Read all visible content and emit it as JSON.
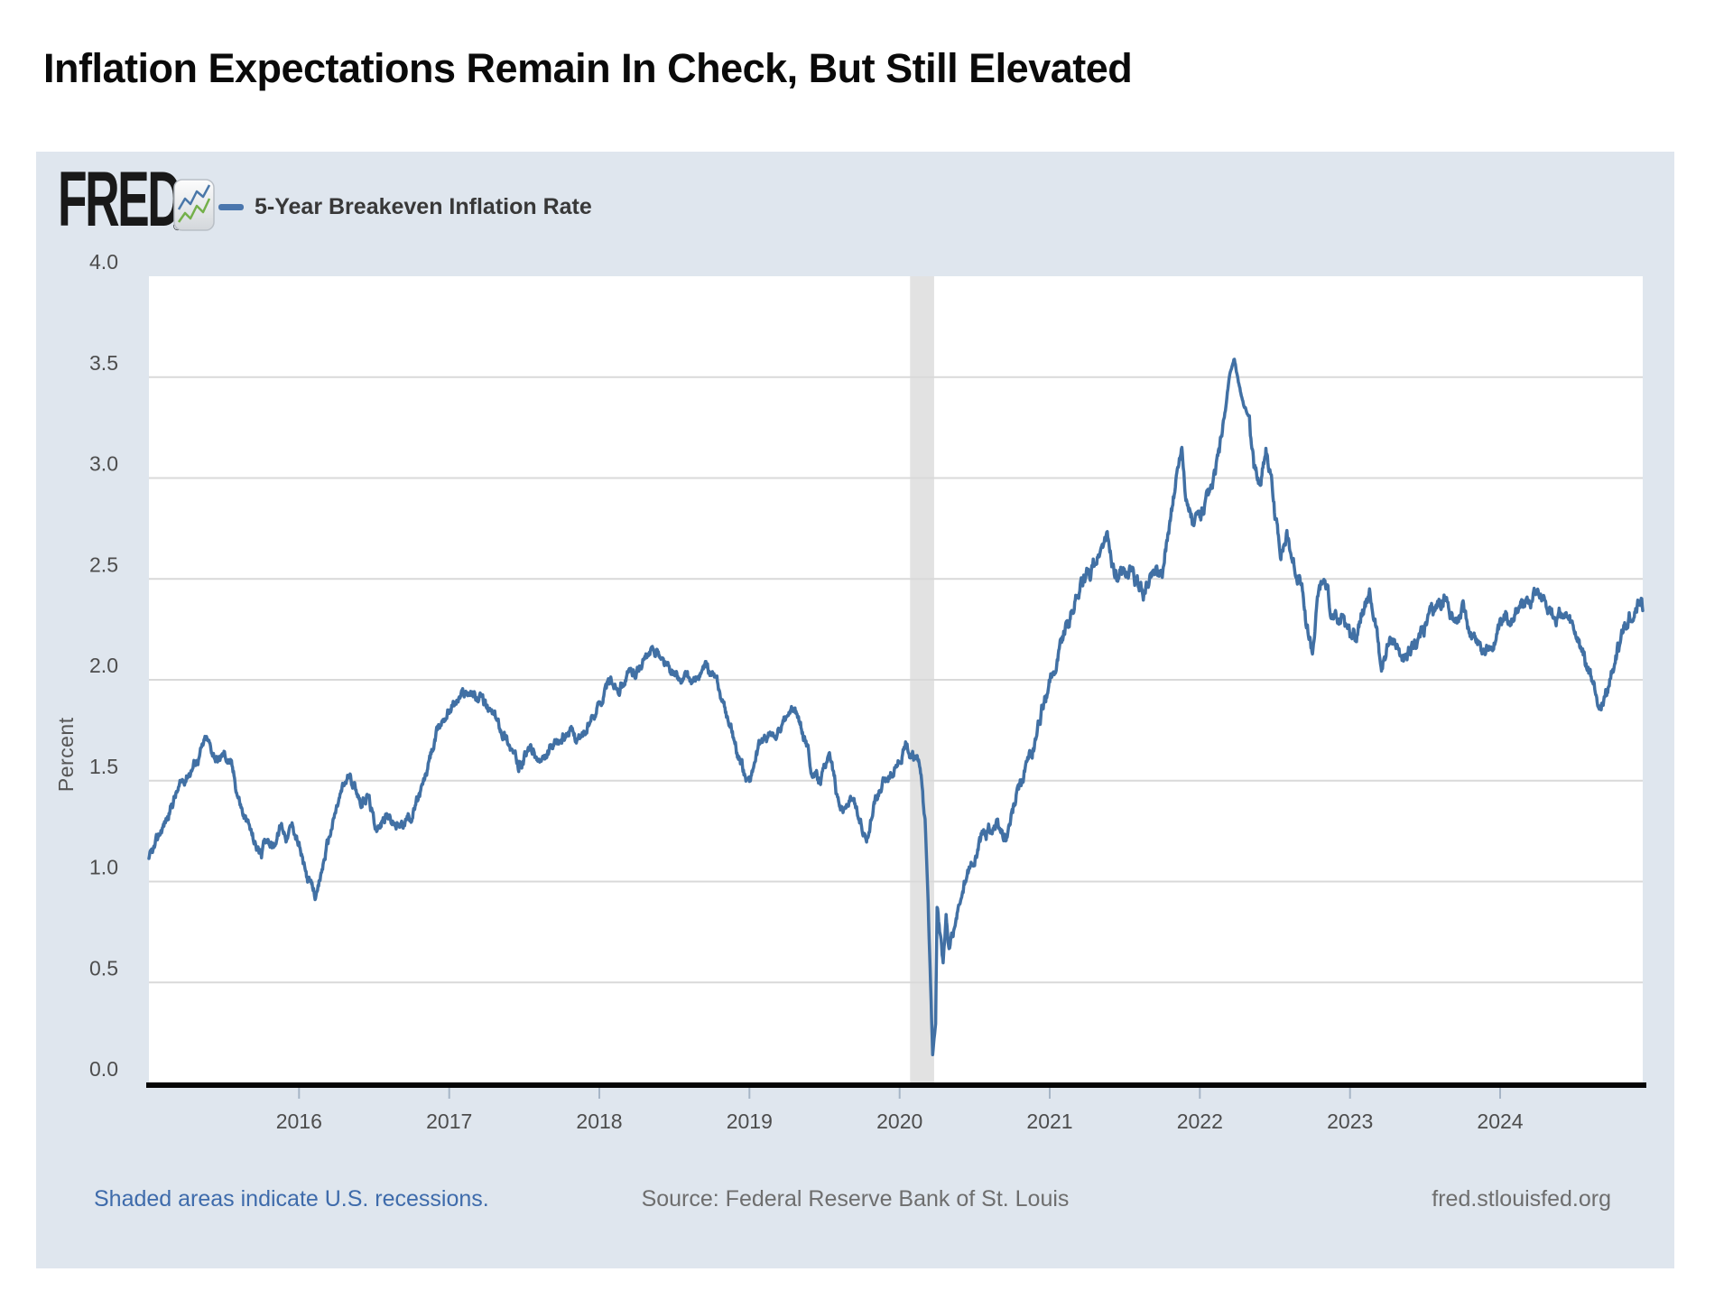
{
  "page": {
    "title": "Inflation Expectations Remain In Check, But Still Elevated"
  },
  "chart": {
    "brand": {
      "logo_text": "FRED",
      "registered_mark": "®"
    },
    "legend": {
      "swatch_color": "#4a76ad",
      "label": "5-Year Breakeven Inflation Rate"
    },
    "footer": {
      "recession_note": "Shaded areas indicate U.S. recessions.",
      "source": "Source: Federal Reserve Bank of St. Louis",
      "site": "fred.stlouisfed.org"
    }
  },
  "chart_data": {
    "type": "line",
    "title": "5-Year Breakeven Inflation Rate",
    "ylabel": "Percent",
    "xlabel": "",
    "ylim": [
      0,
      4
    ],
    "xlim": [
      2015.0,
      2024.95
    ],
    "yticks": [
      "0.0",
      "0.5",
      "1.0",
      "1.5",
      "2.0",
      "2.5",
      "3.0",
      "3.5",
      "4.0"
    ],
    "xticks": [
      2016,
      2017,
      2018,
      2019,
      2020,
      2021,
      2022,
      2023,
      2024
    ],
    "grid": true,
    "legend_position": "top-left",
    "line_color": "#4170a4",
    "gridline_color": "#d9d9d9",
    "recession_band_color": "#e2e2e2",
    "recession_bands": [
      {
        "start": 2020.07,
        "end": 2020.23
      }
    ],
    "series": [
      {
        "name": "5-Year Breakeven Inflation Rate",
        "units": "Percent",
        "points": [
          [
            2015.0,
            1.1
          ],
          [
            2015.04,
            1.16
          ],
          [
            2015.08,
            1.25
          ],
          [
            2015.13,
            1.33
          ],
          [
            2015.17,
            1.42
          ],
          [
            2015.21,
            1.47
          ],
          [
            2015.25,
            1.53
          ],
          [
            2015.29,
            1.57
          ],
          [
            2015.33,
            1.62
          ],
          [
            2015.38,
            1.7
          ],
          [
            2015.42,
            1.65
          ],
          [
            2015.46,
            1.6
          ],
          [
            2015.5,
            1.63
          ],
          [
            2015.54,
            1.6
          ],
          [
            2015.58,
            1.47
          ],
          [
            2015.63,
            1.33
          ],
          [
            2015.67,
            1.26
          ],
          [
            2015.71,
            1.18
          ],
          [
            2015.75,
            1.14
          ],
          [
            2015.79,
            1.23
          ],
          [
            2015.83,
            1.18
          ],
          [
            2015.88,
            1.28
          ],
          [
            2015.92,
            1.23
          ],
          [
            2015.96,
            1.28
          ],
          [
            2016.0,
            1.18
          ],
          [
            2016.04,
            1.04
          ],
          [
            2016.08,
            0.97
          ],
          [
            2016.12,
            0.92
          ],
          [
            2016.17,
            1.12
          ],
          [
            2016.21,
            1.25
          ],
          [
            2016.25,
            1.36
          ],
          [
            2016.29,
            1.46
          ],
          [
            2016.33,
            1.52
          ],
          [
            2016.38,
            1.47
          ],
          [
            2016.42,
            1.39
          ],
          [
            2016.46,
            1.43
          ],
          [
            2016.5,
            1.29
          ],
          [
            2016.54,
            1.27
          ],
          [
            2016.58,
            1.33
          ],
          [
            2016.63,
            1.29
          ],
          [
            2016.67,
            1.26
          ],
          [
            2016.71,
            1.31
          ],
          [
            2016.75,
            1.33
          ],
          [
            2016.79,
            1.4
          ],
          [
            2016.83,
            1.48
          ],
          [
            2016.88,
            1.63
          ],
          [
            2016.92,
            1.73
          ],
          [
            2016.96,
            1.81
          ],
          [
            2017.0,
            1.86
          ],
          [
            2017.04,
            1.89
          ],
          [
            2017.08,
            1.92
          ],
          [
            2017.13,
            1.95
          ],
          [
            2017.17,
            1.93
          ],
          [
            2017.21,
            1.9
          ],
          [
            2017.25,
            1.86
          ],
          [
            2017.29,
            1.83
          ],
          [
            2017.33,
            1.78
          ],
          [
            2017.38,
            1.72
          ],
          [
            2017.42,
            1.65
          ],
          [
            2017.46,
            1.57
          ],
          [
            2017.5,
            1.61
          ],
          [
            2017.54,
            1.66
          ],
          [
            2017.58,
            1.61
          ],
          [
            2017.63,
            1.58
          ],
          [
            2017.67,
            1.64
          ],
          [
            2017.71,
            1.66
          ],
          [
            2017.75,
            1.71
          ],
          [
            2017.79,
            1.75
          ],
          [
            2017.83,
            1.72
          ],
          [
            2017.88,
            1.71
          ],
          [
            2017.92,
            1.76
          ],
          [
            2017.96,
            1.81
          ],
          [
            2018.0,
            1.89
          ],
          [
            2018.04,
            1.95
          ],
          [
            2018.08,
            1.99
          ],
          [
            2018.13,
            1.97
          ],
          [
            2018.17,
            2.01
          ],
          [
            2018.21,
            2.03
          ],
          [
            2018.25,
            2.05
          ],
          [
            2018.29,
            2.09
          ],
          [
            2018.33,
            2.11
          ],
          [
            2018.38,
            2.15
          ],
          [
            2018.42,
            2.09
          ],
          [
            2018.46,
            2.05
          ],
          [
            2018.5,
            2.02
          ],
          [
            2018.54,
            1.99
          ],
          [
            2018.58,
            2.01
          ],
          [
            2018.63,
            1.98
          ],
          [
            2018.67,
            2.02
          ],
          [
            2018.71,
            2.05
          ],
          [
            2018.75,
            2.02
          ],
          [
            2018.79,
            1.97
          ],
          [
            2018.83,
            1.86
          ],
          [
            2018.88,
            1.76
          ],
          [
            2018.92,
            1.64
          ],
          [
            2018.96,
            1.54
          ],
          [
            2019.0,
            1.5
          ],
          [
            2019.04,
            1.61
          ],
          [
            2019.08,
            1.69
          ],
          [
            2019.13,
            1.73
          ],
          [
            2019.17,
            1.71
          ],
          [
            2019.21,
            1.76
          ],
          [
            2019.25,
            1.81
          ],
          [
            2019.29,
            1.86
          ],
          [
            2019.33,
            1.79
          ],
          [
            2019.38,
            1.69
          ],
          [
            2019.42,
            1.54
          ],
          [
            2019.46,
            1.49
          ],
          [
            2019.5,
            1.56
          ],
          [
            2019.54,
            1.61
          ],
          [
            2019.58,
            1.44
          ],
          [
            2019.63,
            1.36
          ],
          [
            2019.67,
            1.41
          ],
          [
            2019.71,
            1.35
          ],
          [
            2019.75,
            1.27
          ],
          [
            2019.79,
            1.24
          ],
          [
            2019.83,
            1.39
          ],
          [
            2019.88,
            1.46
          ],
          [
            2019.92,
            1.51
          ],
          [
            2019.96,
            1.56
          ],
          [
            2020.0,
            1.61
          ],
          [
            2020.04,
            1.66
          ],
          [
            2020.08,
            1.63
          ],
          [
            2020.13,
            1.57
          ],
          [
            2020.15,
            1.45
          ],
          [
            2020.17,
            1.28
          ],
          [
            2020.19,
            0.9
          ],
          [
            2020.21,
            0.4
          ],
          [
            2020.22,
            0.14
          ],
          [
            2020.24,
            0.3
          ],
          [
            2020.25,
            0.9
          ],
          [
            2020.27,
            0.75
          ],
          [
            2020.29,
            0.58
          ],
          [
            2020.31,
            0.8
          ],
          [
            2020.33,
            0.66
          ],
          [
            2020.36,
            0.75
          ],
          [
            2020.4,
            0.88
          ],
          [
            2020.43,
            0.98
          ],
          [
            2020.46,
            1.05
          ],
          [
            2020.5,
            1.1
          ],
          [
            2020.54,
            1.2
          ],
          [
            2020.58,
            1.25
          ],
          [
            2020.63,
            1.28
          ],
          [
            2020.67,
            1.24
          ],
          [
            2020.71,
            1.22
          ],
          [
            2020.75,
            1.32
          ],
          [
            2020.79,
            1.44
          ],
          [
            2020.83,
            1.53
          ],
          [
            2020.88,
            1.63
          ],
          [
            2020.92,
            1.75
          ],
          [
            2020.96,
            1.88
          ],
          [
            2021.0,
            1.97
          ],
          [
            2021.04,
            2.08
          ],
          [
            2021.08,
            2.2
          ],
          [
            2021.13,
            2.3
          ],
          [
            2021.17,
            2.4
          ],
          [
            2021.21,
            2.48
          ],
          [
            2021.25,
            2.52
          ],
          [
            2021.29,
            2.56
          ],
          [
            2021.33,
            2.62
          ],
          [
            2021.38,
            2.7
          ],
          [
            2021.42,
            2.57
          ],
          [
            2021.46,
            2.47
          ],
          [
            2021.5,
            2.53
          ],
          [
            2021.54,
            2.56
          ],
          [
            2021.58,
            2.47
          ],
          [
            2021.63,
            2.43
          ],
          [
            2021.67,
            2.51
          ],
          [
            2021.71,
            2.56
          ],
          [
            2021.75,
            2.53
          ],
          [
            2021.79,
            2.74
          ],
          [
            2021.83,
            2.92
          ],
          [
            2021.86,
            3.08
          ],
          [
            2021.88,
            3.17
          ],
          [
            2021.9,
            2.98
          ],
          [
            2021.92,
            2.86
          ],
          [
            2021.96,
            2.76
          ],
          [
            2022.0,
            2.82
          ],
          [
            2022.04,
            2.87
          ],
          [
            2022.08,
            2.92
          ],
          [
            2022.13,
            3.12
          ],
          [
            2022.17,
            3.33
          ],
          [
            2022.2,
            3.52
          ],
          [
            2022.23,
            3.59
          ],
          [
            2022.26,
            3.46
          ],
          [
            2022.29,
            3.37
          ],
          [
            2022.33,
            3.3
          ],
          [
            2022.36,
            3.06
          ],
          [
            2022.4,
            2.96
          ],
          [
            2022.44,
            3.16
          ],
          [
            2022.47,
            3.02
          ],
          [
            2022.5,
            2.82
          ],
          [
            2022.54,
            2.64
          ],
          [
            2022.58,
            2.71
          ],
          [
            2022.63,
            2.56
          ],
          [
            2022.67,
            2.49
          ],
          [
            2022.71,
            2.27
          ],
          [
            2022.75,
            2.14
          ],
          [
            2022.79,
            2.43
          ],
          [
            2022.83,
            2.49
          ],
          [
            2022.88,
            2.33
          ],
          [
            2022.92,
            2.26
          ],
          [
            2022.96,
            2.32
          ],
          [
            2023.0,
            2.24
          ],
          [
            2023.04,
            2.21
          ],
          [
            2023.08,
            2.36
          ],
          [
            2023.13,
            2.41
          ],
          [
            2023.17,
            2.28
          ],
          [
            2023.21,
            2.06
          ],
          [
            2023.25,
            2.16
          ],
          [
            2023.29,
            2.21
          ],
          [
            2023.33,
            2.13
          ],
          [
            2023.38,
            2.09
          ],
          [
            2023.42,
            2.16
          ],
          [
            2023.46,
            2.21
          ],
          [
            2023.5,
            2.26
          ],
          [
            2023.54,
            2.31
          ],
          [
            2023.58,
            2.36
          ],
          [
            2023.63,
            2.41
          ],
          [
            2023.67,
            2.34
          ],
          [
            2023.71,
            2.29
          ],
          [
            2023.75,
            2.33
          ],
          [
            2023.79,
            2.26
          ],
          [
            2023.83,
            2.21
          ],
          [
            2023.88,
            2.16
          ],
          [
            2023.92,
            2.13
          ],
          [
            2023.96,
            2.19
          ],
          [
            2024.0,
            2.23
          ],
          [
            2024.04,
            2.29
          ],
          [
            2024.08,
            2.33
          ],
          [
            2024.13,
            2.36
          ],
          [
            2024.17,
            2.39
          ],
          [
            2024.21,
            2.43
          ],
          [
            2024.25,
            2.46
          ],
          [
            2024.29,
            2.41
          ],
          [
            2024.33,
            2.36
          ],
          [
            2024.38,
            2.31
          ],
          [
            2024.42,
            2.33
          ],
          [
            2024.46,
            2.26
          ],
          [
            2024.5,
            2.21
          ],
          [
            2024.54,
            2.16
          ],
          [
            2024.58,
            2.06
          ],
          [
            2024.63,
            1.95
          ],
          [
            2024.67,
            1.87
          ],
          [
            2024.71,
            1.93
          ],
          [
            2024.75,
            2.06
          ],
          [
            2024.79,
            2.16
          ],
          [
            2024.83,
            2.26
          ],
          [
            2024.88,
            2.33
          ],
          [
            2024.92,
            2.39
          ],
          [
            2024.95,
            2.36
          ]
        ]
      }
    ]
  }
}
